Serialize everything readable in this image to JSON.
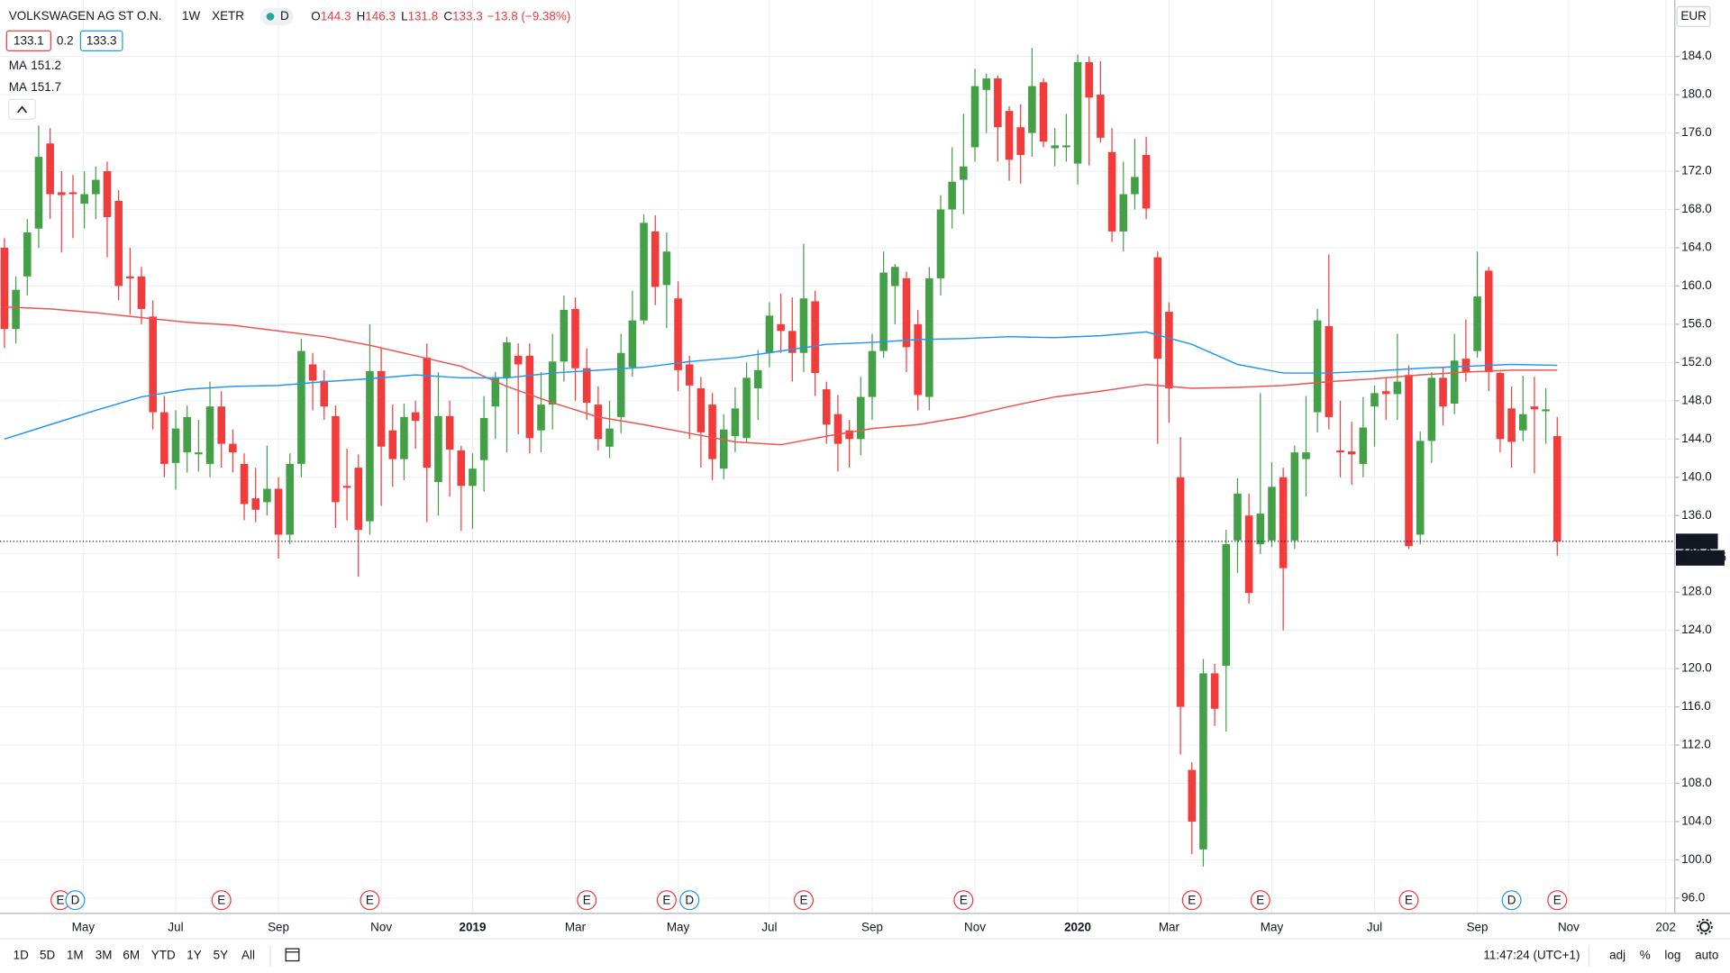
{
  "chart_data": {
    "type": "candlestick",
    "title": "VOLKSWAGEN AG ST O.N.",
    "interval": "1W",
    "exchange": "XETR",
    "status_badge": "D",
    "ohlc_labels": [
      "O",
      "H",
      "L",
      "C"
    ],
    "change": "−13.8",
    "change_percent": "(−9.38%)",
    "bid": 133.1,
    "spread": 0.2,
    "ask": 133.3,
    "currency": "EUR",
    "countdown": "07:02:35",
    "up_color": "#43a047",
    "down_color": "#f23b3b",
    "open": [
      164,
      155.5,
      161,
      166,
      174.9,
      169.8,
      169.8,
      168.6,
      169.6,
      172,
      168.9,
      161,
      161,
      156.8,
      146.8,
      141.5,
      142.6,
      142.4,
      141.4,
      147.4,
      143.5,
      141.4,
      137.8,
      137.4,
      138.8,
      134,
      141.4,
      151.8,
      150.1,
      146.4,
      139.1,
      141,
      135.4,
      151.1,
      144.9,
      141.9,
      146.8,
      152.5,
      139.5,
      146.4,
      142.8,
      139.1,
      141.8,
      147.4,
      150.4,
      152.7,
      152.7,
      144.9,
      147.6,
      152.1,
      157.6,
      151.4,
      147.6,
      143.2,
      146.3,
      151.5,
      156.4,
      165.7,
      160.1,
      158.7,
      151.8,
      149.3,
      147.6,
      140.9,
      144.3,
      144.1,
      149.3,
      153,
      156,
      155.3,
      153,
      158.4,
      149.2,
      146.6,
      144.9,
      144,
      148.4,
      153.2,
      160,
      160.8,
      156,
      148.4,
      160.8,
      168,
      171.1,
      174.5,
      180.5,
      181.7,
      178.3,
      176.6,
      176,
      181.3,
      174.4,
      174.5,
      172.8,
      183.4,
      180,
      174,
      165.7,
      169.6,
      173.7,
      163,
      157.3,
      140,
      109.4,
      101.1,
      119.5,
      120.3,
      133.4,
      136,
      133,
      133.4,
      140,
      133.4,
      141.9,
      146.8,
      155.8,
      142.8,
      142.7,
      141.4,
      147.4,
      149,
      148.7,
      150.7,
      134,
      143.8,
      150.4,
      147.7,
      152.4,
      153.2,
      161.6,
      150.9,
      147.2,
      144.9,
      147.4,
      146.9,
      144.3
    ],
    "high": [
      165,
      161,
      167,
      176.8,
      176.5,
      172,
      171.6,
      172,
      172.5,
      173,
      170,
      164,
      162,
      158.5,
      148.5,
      147,
      147.5,
      146,
      150,
      149,
      145,
      142.5,
      141,
      143.3,
      140,
      142.5,
      154.5,
      153,
      151.2,
      147.5,
      143,
      142.4,
      156,
      153.5,
      147.6,
      147.7,
      148,
      154,
      151,
      148,
      143.3,
      142.5,
      148.5,
      151,
      154.7,
      154,
      154,
      151,
      155,
      159,
      158.8,
      153.5,
      149.5,
      148,
      155,
      159.5,
      167.5,
      167.4,
      165.6,
      160.5,
      152.7,
      150.5,
      148.8,
      146.6,
      149.4,
      152,
      153.3,
      158.3,
      159.2,
      158.8,
      164.4,
      159.5,
      150,
      148.6,
      146,
      150.5,
      155,
      163.6,
      162.3,
      161.5,
      157.5,
      162,
      169.5,
      174.5,
      178,
      182.7,
      182.2,
      182,
      178.8,
      179,
      184.9,
      181.7,
      176.5,
      178,
      184.2,
      184,
      183.5,
      176.5,
      173,
      175.4,
      175.6,
      163.6,
      158.3,
      144.2,
      110.2,
      121,
      120.5,
      134.5,
      139.9,
      138.3,
      148.8,
      141.6,
      141,
      143.3,
      148.5,
      157.6,
      163.3,
      148,
      145.8,
      148.4,
      149.6,
      150.5,
      155,
      151.7,
      144.8,
      151,
      151.5,
      155,
      156.5,
      163.6,
      162,
      151,
      149.5,
      150.6,
      150.5,
      149.3,
      146.3
    ],
    "low": [
      153.5,
      154,
      159,
      164,
      167,
      163.5,
      165,
      166,
      167,
      163,
      158.5,
      157,
      156,
      145,
      140,
      138.7,
      140.5,
      140.6,
      140,
      141,
      140.5,
      135.5,
      135.3,
      136,
      131.5,
      133,
      140,
      147,
      146,
      134.7,
      135.5,
      129.6,
      134,
      137,
      139,
      139.7,
      143,
      135.3,
      136,
      138,
      134.4,
      134.6,
      138.5,
      144,
      142.6,
      144.5,
      142.5,
      142.6,
      145,
      150,
      148,
      146,
      142.8,
      142,
      144.6,
      150.5,
      156,
      158,
      155.6,
      149,
      144,
      141,
      139.7,
      139.8,
      142.6,
      143.7,
      146,
      151.5,
      153,
      150,
      151,
      148.5,
      143.5,
      140.6,
      141,
      142.3,
      146,
      152.5,
      156,
      151,
      147,
      147,
      159,
      166,
      167.5,
      173,
      176,
      173,
      171,
      170.7,
      173.5,
      174.5,
      172.5,
      173,
      170.6,
      172.6,
      175,
      164.6,
      163.6,
      168,
      167,
      143.5,
      145.7,
      111,
      100.6,
      99.3,
      114,
      113.4,
      130,
      126.8,
      132,
      132.7,
      124,
      132.5,
      138,
      144.7,
      145,
      140,
      139.2,
      140,
      143.2,
      146,
      146,
      132.5,
      133,
      141.5,
      145.4,
      146.6,
      150,
      152.5,
      149,
      142.6,
      141,
      143.8,
      140.4,
      143.5,
      131.8
    ],
    "close": [
      155.5,
      159.6,
      165.6,
      173.5,
      169.6,
      169.5,
      169.6,
      169.6,
      171.1,
      167.2,
      160,
      160.8,
      157.6,
      146.8,
      141.4,
      145.1,
      146.3,
      142.6,
      147.4,
      143.5,
      142.6,
      137.2,
      136.6,
      138.8,
      134,
      141.4,
      153.2,
      150.1,
      147.4,
      137.4,
      138.9,
      134.5,
      151.1,
      143.2,
      141.9,
      146.3,
      145.9,
      141,
      146.4,
      142.9,
      139.1,
      140.9,
      146.2,
      150.4,
      154.1,
      151.8,
      144.1,
      147.6,
      152.1,
      157.5,
      151.4,
      147.8,
      144,
      145.1,
      153,
      156.4,
      166.6,
      159.9,
      163.6,
      151.2,
      149.6,
      144.7,
      141.9,
      145,
      147.2,
      150.4,
      151.2,
      156.9,
      155.3,
      153,
      158.7,
      150.9,
      145.5,
      143.5,
      144,
      148.4,
      153.2,
      161.4,
      162,
      153.6,
      148.6,
      160.8,
      168,
      170.9,
      172.5,
      180.9,
      181.7,
      176.6,
      173.2,
      173.7,
      180.9,
      175.1,
      174.7,
      174.7,
      183.4,
      179.7,
      175.5,
      165.7,
      169.6,
      171.4,
      168.1,
      152.4,
      149.3,
      116,
      104,
      119.5,
      115.8,
      133,
      138.3,
      127.9,
      136.2,
      139,
      130.5,
      142.6,
      142.6,
      156.4,
      146.3,
      142.6,
      142.4,
      145.2,
      148.8,
      148.7,
      150,
      132.8,
      143.8,
      150.4,
      147.4,
      152.2,
      151,
      158.9,
      151,
      144,
      143.7,
      146.6,
      147.1,
      147.1,
      133.3
    ],
    "moving_averages": [
      {
        "name": "MA",
        "color": "#ef5350",
        "x": [
          0,
          4,
          8,
          12,
          16,
          20,
          24,
          28,
          32,
          36,
          40,
          44,
          48,
          52,
          56,
          60,
          64,
          68,
          72,
          76,
          80,
          84,
          88,
          92,
          96,
          100,
          104,
          108,
          112,
          116,
          120,
          124,
          128,
          132,
          136
        ],
        "values": [
          157.8,
          157.6,
          157.2,
          156.7,
          156.2,
          155.9,
          155.3,
          154.7,
          153.8,
          152.7,
          151.6,
          149.5,
          147.8,
          146.3,
          145.5,
          144.6,
          143.7,
          143.4,
          144.3,
          145.1,
          145.5,
          146.3,
          147.4,
          148.4,
          149.0,
          149.7,
          149.3,
          149.4,
          149.6,
          150,
          150.3,
          150.7,
          151,
          151.2,
          151.2
        ]
      },
      {
        "name": "MA",
        "color": "#2196f3",
        "x": [
          0,
          4,
          8,
          12,
          16,
          20,
          24,
          28,
          32,
          36,
          40,
          44,
          48,
          52,
          56,
          60,
          64,
          68,
          72,
          76,
          80,
          84,
          88,
          92,
          96,
          100,
          104,
          108,
          112,
          116,
          120,
          124,
          128,
          132,
          136
        ],
        "values": [
          144,
          145.5,
          147,
          148.4,
          149.2,
          149.5,
          149.6,
          150,
          150.3,
          150.7,
          150.4,
          150.4,
          150.9,
          151.2,
          151.5,
          152.1,
          152.5,
          153.2,
          153.9,
          154.1,
          154.4,
          154.5,
          154.7,
          154.6,
          154.8,
          155.2,
          153.9,
          151.8,
          150.9,
          150.9,
          151.1,
          151.4,
          151.6,
          151.8,
          151.7
        ]
      }
    ],
    "xlim": [
      -0.39,
      146.3
    ],
    "xticks": [
      {
        "value": 6.9,
        "label": "May"
      },
      {
        "value": 15,
        "label": "Jul"
      },
      {
        "value": 24,
        "label": "Sep"
      },
      {
        "value": 33,
        "label": "Nov"
      },
      {
        "value": 41,
        "label": "2019"
      },
      {
        "value": 50,
        "label": "Mar"
      },
      {
        "value": 59,
        "label": "May"
      },
      {
        "value": 67,
        "label": "Jul"
      },
      {
        "value": 76,
        "label": "Sep"
      },
      {
        "value": 85,
        "label": "Nov"
      },
      {
        "value": 94,
        "label": "2020"
      },
      {
        "value": 102,
        "label": "Mar"
      },
      {
        "value": 111,
        "label": "May"
      },
      {
        "value": 120,
        "label": "Jul"
      },
      {
        "value": 129,
        "label": "Sep"
      },
      {
        "value": 137,
        "label": "Nov"
      },
      {
        "value": 145.5,
        "label": "202"
      }
    ],
    "ylim": [
      94.4,
      189.9
    ],
    "yticks": [
      {
        "value": 96,
        "label": "96.0"
      },
      {
        "value": 100,
        "label": "100.0"
      },
      {
        "value": 104,
        "label": "104.0"
      },
      {
        "value": 108,
        "label": "108.0"
      },
      {
        "value": 112,
        "label": "112.0"
      },
      {
        "value": 116,
        "label": "116.0"
      },
      {
        "value": 120,
        "label": "120.0"
      },
      {
        "value": 124,
        "label": "124.0"
      },
      {
        "value": 128,
        "label": "128.0"
      },
      {
        "value": 132,
        "label": "132.0"
      },
      {
        "value": 136,
        "label": "136.0"
      },
      {
        "value": 140,
        "label": "140.0"
      },
      {
        "value": 144,
        "label": "144.0"
      },
      {
        "value": 148,
        "label": "148.0"
      },
      {
        "value": 152,
        "label": "152.0"
      },
      {
        "value": 156,
        "label": "156.0"
      },
      {
        "value": 160,
        "label": "160.0"
      },
      {
        "value": 164,
        "label": "164.0"
      },
      {
        "value": 168,
        "label": "168.0"
      },
      {
        "value": 172,
        "label": "172.0"
      },
      {
        "value": 176,
        "label": "176.0"
      },
      {
        "value": 180,
        "label": "180.0"
      },
      {
        "value": 184,
        "label": "184.0"
      }
    ],
    "grid": true,
    "events": [
      {
        "label": "E",
        "x": 4.9,
        "color": "#f23b3b"
      },
      {
        "label": "D",
        "x": 6.2,
        "color": "#2196f3"
      },
      {
        "label": "E",
        "x": 19,
        "color": "#f23b3b"
      },
      {
        "label": "E",
        "x": 32,
        "color": "#f23b3b"
      },
      {
        "label": "E",
        "x": 51,
        "color": "#f23b3b"
      },
      {
        "label": "E",
        "x": 58,
        "color": "#f23b3b"
      },
      {
        "label": "D",
        "x": 60,
        "color": "#2196f3"
      },
      {
        "label": "E",
        "x": 70,
        "color": "#f23b3b"
      },
      {
        "label": "E",
        "x": 84,
        "color": "#f23b3b"
      },
      {
        "label": "E",
        "x": 104,
        "color": "#f23b3b"
      },
      {
        "label": "E",
        "x": 110,
        "color": "#f23b3b"
      },
      {
        "label": "E",
        "x": 123,
        "color": "#f23b3b"
      },
      {
        "label": "D",
        "x": 132,
        "color": "#2196f3"
      },
      {
        "label": "E",
        "x": 136,
        "color": "#f23b3b"
      }
    ]
  },
  "toolbar": {
    "ranges": [
      "1D",
      "5D",
      "1M",
      "3M",
      "6M",
      "YTD",
      "1Y",
      "5Y",
      "All"
    ],
    "clock": "11:47:24 (UTC+1)",
    "options": [
      "adj",
      "%",
      "log",
      "auto"
    ]
  }
}
